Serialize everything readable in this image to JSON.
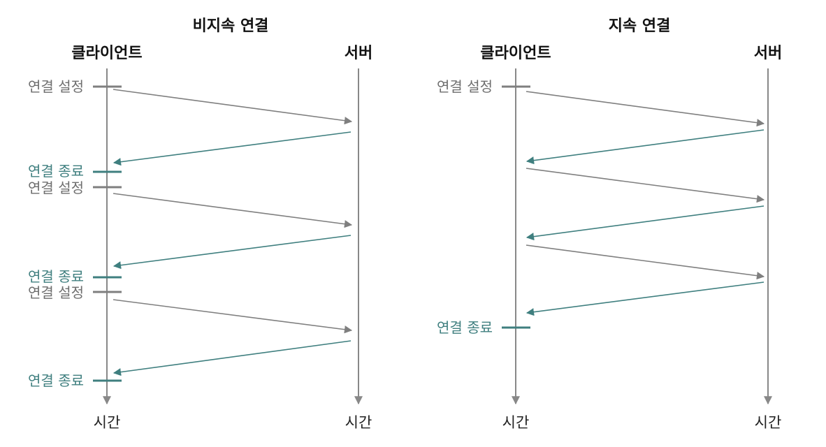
{
  "colors": {
    "timeline": "#888888",
    "request": "#7f7f7f",
    "response": "#3f7f7f",
    "setup_label": "#6e6e6e",
    "close_label": "#3f7f7f",
    "text": "#111111"
  },
  "panels": [
    {
      "title": "비지속 연결",
      "client_label": "클라이언트",
      "server_label": "서버",
      "client_time": "시간",
      "server_time": "시간",
      "events": [
        {
          "kind": "setup",
          "text": "연결 설정"
        },
        {
          "kind": "close",
          "text": "연결 종료"
        },
        {
          "kind": "setup",
          "text": "연결 설정"
        },
        {
          "kind": "close",
          "text": "연결 종료"
        },
        {
          "kind": "setup",
          "text": "연결 설정"
        },
        {
          "kind": "close",
          "text": "연결 종료"
        }
      ]
    },
    {
      "title": "지속 연결",
      "client_label": "클라이언트",
      "server_label": "서버",
      "client_time": "시간",
      "server_time": "시간",
      "events": [
        {
          "kind": "setup",
          "text": "연결 설정"
        },
        {
          "kind": "close",
          "text": "연결 종료"
        }
      ]
    }
  ]
}
